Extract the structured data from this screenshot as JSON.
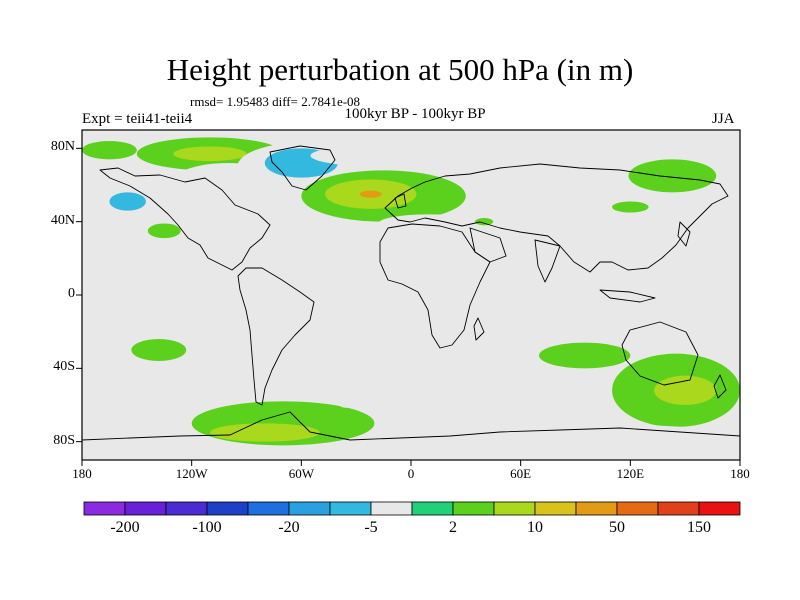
{
  "title": "Height perturbation at 500 hPa (in m)",
  "stats": "rmsd= 1.95483 diff= 2.7841e-08",
  "experiment": "Expt = teii41-teii4",
  "period": "100kyr BP - 100kyr BP",
  "season": "JJA",
  "map": {
    "lon_range": [
      -180,
      180
    ],
    "lat_range": [
      -90,
      90
    ],
    "lat_ticks": [
      {
        "lat": 80,
        "label": "80N"
      },
      {
        "lat": 40,
        "label": "40N"
      },
      {
        "lat": 0,
        "label": "0"
      },
      {
        "lat": -40,
        "label": "40S"
      },
      {
        "lat": -80,
        "label": "80S"
      }
    ],
    "lon_ticks": [
      {
        "lon": -180,
        "label": "180"
      },
      {
        "lon": -120,
        "label": "120W"
      },
      {
        "lon": -60,
        "label": "60W"
      },
      {
        "lon": 0,
        "label": "0"
      },
      {
        "lon": 60,
        "label": "60E"
      },
      {
        "lon": 120,
        "label": "120E"
      },
      {
        "lon": 180,
        "label": "180"
      }
    ],
    "background_color": "#e8e8e8",
    "anomalies": [
      {
        "lon": -165,
        "lat": 79,
        "rx": 15,
        "ry": 5,
        "bin": 9
      },
      {
        "lon": -110,
        "lat": 77,
        "rx": 40,
        "ry": 9,
        "bin": 9
      },
      {
        "lon": -110,
        "lat": 77,
        "rx": 20,
        "ry": 4,
        "bin": 10
      },
      {
        "lon": -100,
        "lat": 62,
        "rx": 30,
        "ry": 10,
        "bin": 7
      },
      {
        "lon": -60,
        "lat": 70,
        "rx": 35,
        "ry": 13,
        "bin": 7
      },
      {
        "lon": -60,
        "lat": 72,
        "rx": 20,
        "ry": 8,
        "bin": 6
      },
      {
        "lon": -155,
        "lat": 52,
        "rx": 22,
        "ry": 10,
        "bin": 7
      },
      {
        "lon": -155,
        "lat": 51,
        "rx": 10,
        "ry": 5,
        "bin": 6
      },
      {
        "lon": -135,
        "lat": 35,
        "rx": 9,
        "ry": 4,
        "bin": 9
      },
      {
        "lon": -15,
        "lat": 54,
        "rx": 45,
        "ry": 14,
        "bin": 9
      },
      {
        "lon": -22,
        "lat": 55,
        "rx": 25,
        "ry": 8,
        "bin": 10
      },
      {
        "lon": -22,
        "lat": 55,
        "rx": 6,
        "ry": 2,
        "bin": 12
      },
      {
        "lon": 0,
        "lat": 76,
        "rx": 55,
        "ry": 7,
        "bin": 7
      },
      {
        "lon": 60,
        "lat": 65,
        "rx": 20,
        "ry": 10,
        "bin": 7
      },
      {
        "lon": 10,
        "lat": 39,
        "rx": 28,
        "ry": 5,
        "bin": 7
      },
      {
        "lon": 40,
        "lat": 40,
        "rx": 5,
        "ry": 2,
        "bin": 9
      },
      {
        "lon": 143,
        "lat": 78,
        "rx": 40,
        "ry": 8,
        "bin": 7
      },
      {
        "lon": 143,
        "lat": 65,
        "rx": 24,
        "ry": 9,
        "bin": 9
      },
      {
        "lon": 120,
        "lat": 48,
        "rx": 10,
        "ry": 3,
        "bin": 9
      },
      {
        "lon": -138,
        "lat": -30,
        "rx": 15,
        "ry": 6,
        "bin": 9
      },
      {
        "lon": -125,
        "lat": -53,
        "rx": 55,
        "ry": 12,
        "bin": 7
      },
      {
        "lon": -70,
        "lat": -70,
        "rx": 50,
        "ry": 12,
        "bin": 9
      },
      {
        "lon": -80,
        "lat": -75,
        "rx": 30,
        "ry": 5,
        "bin": 10
      },
      {
        "lon": 30,
        "lat": -57,
        "rx": 22,
        "ry": 9,
        "bin": 7
      },
      {
        "lon": 45,
        "lat": -33,
        "rx": 28,
        "ry": 6,
        "bin": 7
      },
      {
        "lon": 80,
        "lat": -52,
        "rx": 40,
        "ry": 12,
        "bin": 7
      },
      {
        "lon": 95,
        "lat": -33,
        "rx": 25,
        "ry": 7,
        "bin": 9
      },
      {
        "lon": 145,
        "lat": -52,
        "rx": 35,
        "ry": 20,
        "bin": 9
      },
      {
        "lon": 150,
        "lat": -52,
        "rx": 17,
        "ry": 8,
        "bin": 10
      },
      {
        "lon": 120,
        "lat": -78,
        "rx": 55,
        "ry": 7,
        "bin": 7
      },
      {
        "lon": -35,
        "lat": -60,
        "rx": 4,
        "ry": 1.5,
        "bin": 7
      }
    ]
  },
  "colorbar": {
    "colors": [
      "#8a2be2",
      "#6a1fd8",
      "#4b2bd2",
      "#1e40c8",
      "#1f6fe0",
      "#2aa0e0",
      "#33b9df",
      "#e8e8e8",
      "#22d07a",
      "#5bd11e",
      "#a9d81c",
      "#d9c21a",
      "#e39a14",
      "#e46a14",
      "#e0401a",
      "#e81212"
    ],
    "labels": [
      "-200",
      "-100",
      "-20",
      "-5",
      "2",
      "10",
      "50",
      "150"
    ]
  }
}
